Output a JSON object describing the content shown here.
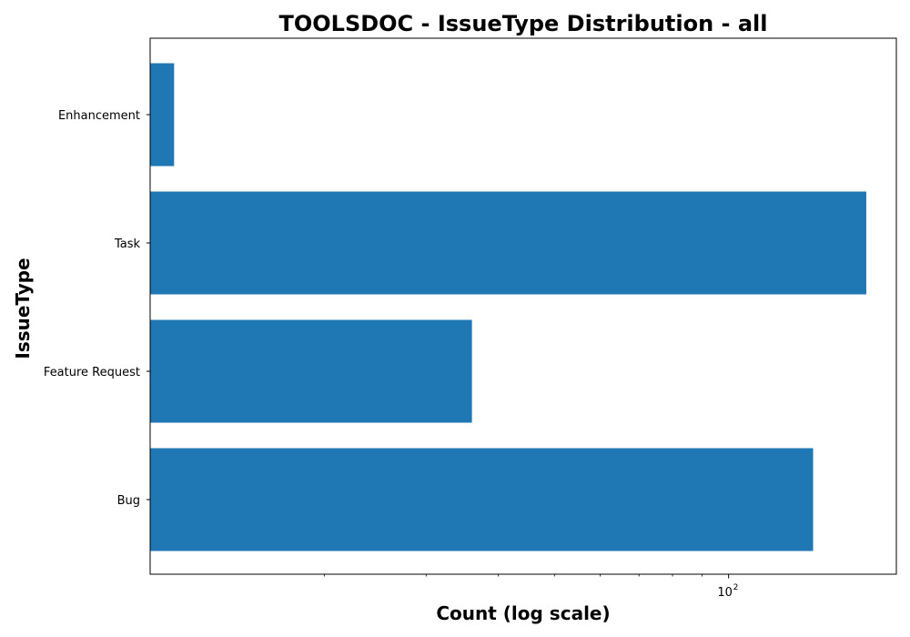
{
  "chart_data": {
    "type": "bar",
    "orientation": "horizontal",
    "title": "TOOLSDOC - IssueType Distribution - all",
    "xlabel": "Count (log scale)",
    "ylabel": "IssueType",
    "x_scale": "log",
    "xlim": [
      10,
      195
    ],
    "x_major_tick_label": {
      "base": "10",
      "exponent": "2",
      "value": 100
    },
    "x_minor_ticks": [
      20,
      30,
      40,
      50,
      60,
      70,
      80,
      90
    ],
    "categories": [
      "Enhancement",
      "Task",
      "Feature Request",
      "Bug"
    ],
    "values": [
      11,
      173,
      36,
      140
    ],
    "bar_color": "#1f77b4",
    "grid": false,
    "legend": "none"
  }
}
